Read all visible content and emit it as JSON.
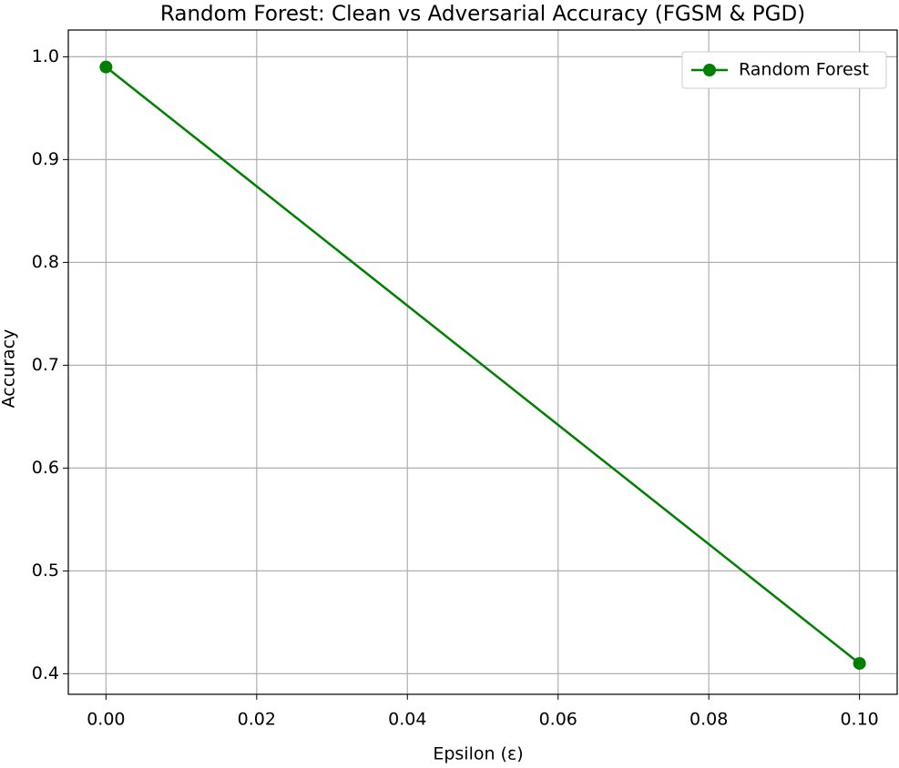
{
  "chart_data": {
    "type": "line",
    "title": "Random Forest: Clean vs Adversarial Accuracy (FGSM & PGD)",
    "x_label": "Epsilon (ε)",
    "y_label": "Accuracy",
    "x": [
      0.0,
      0.1
    ],
    "series": [
      {
        "name": "Random Forest",
        "color": "#008000",
        "values": [
          0.99,
          0.41
        ]
      }
    ],
    "xlim": [
      -0.005,
      0.105
    ],
    "xticks": [
      {
        "value": 0,
        "label": "0.00"
      },
      {
        "value": 0.02,
        "label": "0.02"
      },
      {
        "value": 0.04,
        "label": "0.04"
      },
      {
        "value": 0.06,
        "label": "0.06"
      },
      {
        "value": 0.08,
        "label": "0.08"
      },
      {
        "value": 0.1,
        "label": "0.10"
      }
    ],
    "ylim": [
      0.38,
      1.026
    ],
    "yticks": [
      0.4,
      0.5,
      0.6,
      0.7,
      0.8,
      0.9,
      {
        "value": 1,
        "label": "1.0"
      }
    ],
    "grid": true,
    "legend": "upper right"
  }
}
